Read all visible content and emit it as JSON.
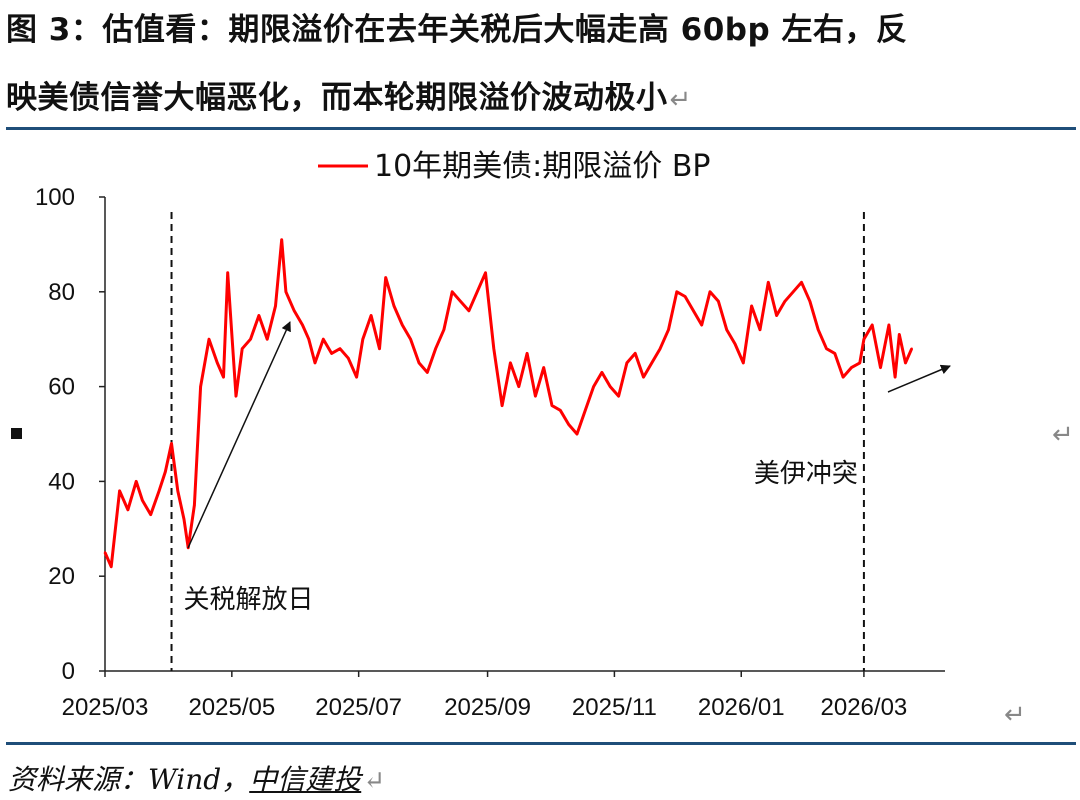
{
  "title": {
    "line1": "图 3：估值看：期限溢价在去年关税后大幅走高 60bp 左右，反",
    "line2": "映美债信誉大幅恶化，而本轮期限溢价波动极小",
    "return_mark": "↵"
  },
  "source": {
    "label": "资料来源：Wind，",
    "brand": "中信建投"
  },
  "colors": {
    "series": "#ff0000",
    "rule": "#1f4e79",
    "axis": "#222222"
  },
  "chart_data": {
    "type": "line",
    "title": "",
    "xlabel": "",
    "ylabel": "",
    "ylim": [
      0,
      100
    ],
    "yticks": [
      0,
      20,
      40,
      60,
      80,
      100
    ],
    "x_tick_labels": [
      "2025/03",
      "2025/05",
      "2025/07",
      "2025/09",
      "2025/11",
      "2026/01",
      "2026/03"
    ],
    "legend": {
      "position": "top-center",
      "label": "10年期美债:期限溢价 BP"
    },
    "series": [
      {
        "name": "10年期美债:期限溢价 BP",
        "color": "#ff0000",
        "x": [
          "2025-03-01",
          "2025-03-04",
          "2025-03-08",
          "2025-03-12",
          "2025-03-16",
          "2025-03-19",
          "2025-03-23",
          "2025-03-27",
          "2025-03-30",
          "2025-04-02",
          "2025-04-05",
          "2025-04-08",
          "2025-04-10",
          "2025-04-13",
          "2025-04-16",
          "2025-04-20",
          "2025-04-24",
          "2025-04-27",
          "2025-04-29",
          "2025-05-03",
          "2025-05-06",
          "2025-05-10",
          "2025-05-14",
          "2025-05-18",
          "2025-05-22",
          "2025-05-25",
          "2025-05-27",
          "2025-05-31",
          "2025-06-04",
          "2025-06-07",
          "2025-06-10",
          "2025-06-14",
          "2025-06-18",
          "2025-06-22",
          "2025-06-26",
          "2025-06-30",
          "2025-07-03",
          "2025-07-07",
          "2025-07-11",
          "2025-07-14",
          "2025-07-18",
          "2025-07-22",
          "2025-07-26",
          "2025-07-30",
          "2025-08-03",
          "2025-08-07",
          "2025-08-11",
          "2025-08-15",
          "2025-08-19",
          "2025-08-23",
          "2025-08-27",
          "2025-08-31",
          "2025-09-04",
          "2025-09-08",
          "2025-09-12",
          "2025-09-16",
          "2025-09-20",
          "2025-09-24",
          "2025-09-28",
          "2025-10-02",
          "2025-10-06",
          "2025-10-10",
          "2025-10-14",
          "2025-10-18",
          "2025-10-22",
          "2025-10-26",
          "2025-10-30",
          "2025-11-03",
          "2025-11-07",
          "2025-11-11",
          "2025-11-15",
          "2025-11-19",
          "2025-11-23",
          "2025-11-27",
          "2025-12-01",
          "2025-12-05",
          "2025-12-09",
          "2025-12-13",
          "2025-12-17",
          "2025-12-21",
          "2025-12-25",
          "2025-12-29",
          "2026-01-02",
          "2026-01-06",
          "2026-01-10",
          "2026-01-14",
          "2026-01-18",
          "2026-01-22",
          "2026-01-26",
          "2026-01-30",
          "2026-02-03",
          "2026-02-07",
          "2026-02-11",
          "2026-02-15",
          "2026-02-19",
          "2026-02-23",
          "2026-02-27",
          "2026-03-01",
          "2026-03-05",
          "2026-03-09",
          "2026-03-13",
          "2026-03-16",
          "2026-03-18",
          "2026-03-21",
          "2026-03-24"
        ],
        "values": [
          25,
          22,
          38,
          34,
          40,
          36,
          33,
          38,
          42,
          48,
          38,
          32,
          26,
          35,
          60,
          70,
          65,
          62,
          84,
          58,
          68,
          70,
          75,
          70,
          77,
          91,
          80,
          76,
          73,
          70,
          65,
          70,
          67,
          68,
          66,
          62,
          70,
          75,
          68,
          83,
          77,
          73,
          70,
          65,
          63,
          68,
          72,
          80,
          78,
          76,
          80,
          84,
          68,
          56,
          65,
          60,
          67,
          58,
          64,
          56,
          55,
          52,
          50,
          55,
          60,
          63,
          60,
          58,
          65,
          67,
          62,
          65,
          68,
          72,
          80,
          79,
          76,
          73,
          80,
          78,
          72,
          69,
          65,
          77,
          72,
          82,
          75,
          78,
          80,
          82,
          78,
          72,
          68,
          67,
          62,
          64,
          65,
          70,
          73,
          64,
          73,
          62,
          71,
          65,
          68
        ]
      }
    ],
    "annotations": [
      {
        "text": "关税解放日",
        "x": "2025-04-02"
      },
      {
        "text": "美伊冲突",
        "x": "2026-03-01"
      }
    ]
  }
}
